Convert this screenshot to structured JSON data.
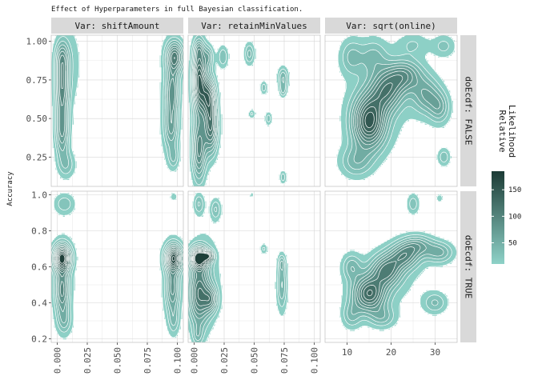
{
  "chart_data": {
    "type": "heatmap",
    "title": "Effect of Hyperparameters in full Bayesian classification.",
    "ylabel": "Accuracy",
    "xlabel": "",
    "colors": {
      "low": "#8ed2c8",
      "high": "#1c3b35",
      "contour_line": "#ffffff",
      "strip_bg": "#d9d9d9",
      "grid": "#d6d6d6"
    },
    "columns": [
      {
        "strip": "Var: shiftAmount",
        "xlim": [
          -0.005,
          0.105
        ],
        "ticks": [
          0.0,
          0.025,
          0.05,
          0.075,
          0.1
        ],
        "tick_labels": [
          "0.000",
          "0.025",
          "0.050",
          "0.075",
          "0.100"
        ],
        "tick_orientation": "rotated"
      },
      {
        "strip": "Var: retainMinValues",
        "xlim": [
          -0.005,
          0.105
        ],
        "ticks": [
          0.0,
          0.025,
          0.05,
          0.075,
          0.1
        ],
        "tick_labels": [
          "0.000",
          "0.025",
          "0.050",
          "0.075",
          "0.100"
        ],
        "tick_orientation": "rotated"
      },
      {
        "strip": "Var: sqrt(online)",
        "xlim": [
          5,
          35
        ],
        "ticks": [
          10,
          20,
          30
        ],
        "tick_labels": [
          "10",
          "20",
          "30"
        ],
        "tick_orientation": "horizontal"
      }
    ],
    "rows": [
      {
        "strip": "doEcdf: FALSE",
        "ylim": [
          0.06,
          1.04
        ],
        "ticks": [
          0.25,
          0.5,
          0.75,
          1.0
        ],
        "tick_labels": [
          "0.25",
          "0.50",
          "0.75",
          "1.00"
        ]
      },
      {
        "strip": "doEcdf: TRUE",
        "ylim": [
          0.18,
          1.02
        ],
        "ticks": [
          0.2,
          0.4,
          0.6,
          0.8,
          1.0
        ],
        "tick_labels": [
          "0.2",
          "0.4",
          "0.6",
          "0.8",
          "1.0"
        ]
      }
    ],
    "legend": {
      "title": "Relative\nLikelihood",
      "position": "right",
      "range": [
        10,
        185
      ],
      "ticks": [
        50,
        100,
        150
      ],
      "tick_labels": [
        "50",
        "100",
        "150"
      ]
    },
    "grid": true,
    "panels": [
      {
        "row": 0,
        "col": 0,
        "clusters": [
          {
            "x": 0.004,
            "y": 0.72,
            "sx": 0.004,
            "sy": 0.14,
            "peak": 95
          },
          {
            "x": 0.004,
            "y": 0.42,
            "sx": 0.004,
            "sy": 0.12,
            "peak": 80
          },
          {
            "x": 0.004,
            "y": 0.9,
            "sx": 0.004,
            "sy": 0.07,
            "peak": 45
          },
          {
            "x": 0.008,
            "y": 0.2,
            "sx": 0.005,
            "sy": 0.06,
            "peak": 35
          },
          {
            "x": 0.098,
            "y": 0.9,
            "sx": 0.005,
            "sy": 0.07,
            "peak": 110
          },
          {
            "x": 0.096,
            "y": 0.68,
            "sx": 0.004,
            "sy": 0.1,
            "peak": 75
          },
          {
            "x": 0.095,
            "y": 0.45,
            "sx": 0.004,
            "sy": 0.1,
            "peak": 60
          },
          {
            "x": 0.097,
            "y": 0.25,
            "sx": 0.003,
            "sy": 0.05,
            "peak": 35
          },
          {
            "x": 0.01,
            "y": 0.85,
            "sx": 0.008,
            "sy": 0.2,
            "peak": 20
          },
          {
            "x": 0.093,
            "y": 0.6,
            "sx": 0.006,
            "sy": 0.3,
            "peak": 18
          }
        ]
      },
      {
        "row": 0,
        "col": 1,
        "clusters": [
          {
            "x": 0.004,
            "y": 0.75,
            "sx": 0.004,
            "sy": 0.15,
            "peak": 150
          },
          {
            "x": 0.012,
            "y": 0.65,
            "sx": 0.004,
            "sy": 0.09,
            "peak": 110
          },
          {
            "x": 0.014,
            "y": 0.45,
            "sx": 0.004,
            "sy": 0.12,
            "peak": 120
          },
          {
            "x": 0.004,
            "y": 0.3,
            "sx": 0.004,
            "sy": 0.14,
            "peak": 100
          },
          {
            "x": 0.012,
            "y": 0.9,
            "sx": 0.003,
            "sy": 0.05,
            "peak": 55
          },
          {
            "x": 0.004,
            "y": 0.95,
            "sx": 0.003,
            "sy": 0.04,
            "peak": 35
          },
          {
            "x": 0.024,
            "y": 0.9,
            "sx": 0.003,
            "sy": 0.05,
            "peak": 40
          },
          {
            "x": 0.046,
            "y": 0.92,
            "sx": 0.003,
            "sy": 0.05,
            "peak": 45
          },
          {
            "x": 0.074,
            "y": 0.76,
            "sx": 0.003,
            "sy": 0.05,
            "peak": 55
          },
          {
            "x": 0.074,
            "y": 0.68,
            "sx": 0.002,
            "sy": 0.03,
            "peak": 35
          },
          {
            "x": 0.058,
            "y": 0.7,
            "sx": 0.002,
            "sy": 0.03,
            "peak": 35
          },
          {
            "x": 0.062,
            "y": 0.5,
            "sx": 0.002,
            "sy": 0.03,
            "peak": 35
          },
          {
            "x": 0.048,
            "y": 0.53,
            "sx": 0.002,
            "sy": 0.02,
            "peak": 30
          },
          {
            "x": 0.074,
            "y": 0.12,
            "sx": 0.002,
            "sy": 0.03,
            "peak": 35
          }
        ]
      },
      {
        "row": 0,
        "col": 2,
        "clusters": [
          {
            "x": 15,
            "y": 0.48,
            "sx": 2.6,
            "sy": 0.12,
            "peak": 150
          },
          {
            "x": 19,
            "y": 0.68,
            "sx": 2.6,
            "sy": 0.09,
            "peak": 95
          },
          {
            "x": 23,
            "y": 0.78,
            "sx": 2.8,
            "sy": 0.07,
            "peak": 80
          },
          {
            "x": 28,
            "y": 0.65,
            "sx": 2.2,
            "sy": 0.08,
            "peak": 60
          },
          {
            "x": 31,
            "y": 0.57,
            "sx": 1.6,
            "sy": 0.07,
            "peak": 50
          },
          {
            "x": 12,
            "y": 0.22,
            "sx": 2.5,
            "sy": 0.07,
            "peak": 45
          },
          {
            "x": 11,
            "y": 0.9,
            "sx": 1.8,
            "sy": 0.08,
            "peak": 40
          },
          {
            "x": 16,
            "y": 0.9,
            "sx": 2.2,
            "sy": 0.08,
            "peak": 40
          },
          {
            "x": 25,
            "y": 0.98,
            "sx": 2.5,
            "sy": 0.05,
            "peak": 25
          },
          {
            "x": 32,
            "y": 0.97,
            "sx": 1.8,
            "sy": 0.05,
            "peak": 30
          },
          {
            "x": 32,
            "y": 0.25,
            "sx": 1.0,
            "sy": 0.04,
            "peak": 35
          },
          {
            "x": 18,
            "y": 0.6,
            "sx": 8,
            "sy": 0.25,
            "peak": 12
          }
        ]
      },
      {
        "row": 1,
        "col": 0,
        "clusters": [
          {
            "x": 0.004,
            "y": 0.65,
            "sx": 0.005,
            "sy": 0.05,
            "peak": 175
          },
          {
            "x": 0.004,
            "y": 0.47,
            "sx": 0.004,
            "sy": 0.09,
            "peak": 85
          },
          {
            "x": 0.006,
            "y": 0.3,
            "sx": 0.004,
            "sy": 0.05,
            "peak": 35
          },
          {
            "x": 0.006,
            "y": 0.95,
            "sx": 0.006,
            "sy": 0.04,
            "peak": 35
          },
          {
            "x": 0.097,
            "y": 0.65,
            "sx": 0.005,
            "sy": 0.05,
            "peak": 160
          },
          {
            "x": 0.096,
            "y": 0.48,
            "sx": 0.004,
            "sy": 0.09,
            "peak": 70
          },
          {
            "x": 0.097,
            "y": 0.3,
            "sx": 0.003,
            "sy": 0.05,
            "peak": 30
          },
          {
            "x": 0.097,
            "y": 0.99,
            "sx": 0.002,
            "sy": 0.015,
            "peak": 25
          },
          {
            "x": 0.005,
            "y": 0.5,
            "sx": 0.007,
            "sy": 0.2,
            "peak": 18
          },
          {
            "x": 0.096,
            "y": 0.5,
            "sx": 0.006,
            "sy": 0.2,
            "peak": 18
          }
        ]
      },
      {
        "row": 1,
        "col": 1,
        "clusters": [
          {
            "x": 0.004,
            "y": 0.65,
            "sx": 0.005,
            "sy": 0.04,
            "peak": 185
          },
          {
            "x": 0.012,
            "y": 0.66,
            "sx": 0.003,
            "sy": 0.02,
            "peak": 120
          },
          {
            "x": 0.004,
            "y": 0.45,
            "sx": 0.006,
            "sy": 0.12,
            "peak": 110
          },
          {
            "x": 0.014,
            "y": 0.42,
            "sx": 0.004,
            "sy": 0.05,
            "peak": 75
          },
          {
            "x": 0.004,
            "y": 0.95,
            "sx": 0.003,
            "sy": 0.04,
            "peak": 40
          },
          {
            "x": 0.018,
            "y": 0.92,
            "sx": 0.003,
            "sy": 0.04,
            "peak": 40
          },
          {
            "x": 0.003,
            "y": 0.22,
            "sx": 0.003,
            "sy": 0.04,
            "peak": 35
          },
          {
            "x": 0.073,
            "y": 0.5,
            "sx": 0.003,
            "sy": 0.1,
            "peak": 55
          },
          {
            "x": 0.073,
            "y": 0.62,
            "sx": 0.002,
            "sy": 0.03,
            "peak": 35
          },
          {
            "x": 0.058,
            "y": 0.7,
            "sx": 0.002,
            "sy": 0.02,
            "peak": 30
          },
          {
            "x": 0.048,
            "y": 1.0,
            "sx": 0.001,
            "sy": 0.01,
            "peak": 25
          },
          {
            "x": 0.01,
            "y": 0.55,
            "sx": 0.01,
            "sy": 0.2,
            "peak": 20
          }
        ]
      },
      {
        "row": 1,
        "col": 2,
        "clusters": [
          {
            "x": 15,
            "y": 0.45,
            "sx": 2.6,
            "sy": 0.07,
            "peak": 130
          },
          {
            "x": 19,
            "y": 0.58,
            "sx": 2.4,
            "sy": 0.06,
            "peak": 100
          },
          {
            "x": 23,
            "y": 0.66,
            "sx": 2.4,
            "sy": 0.05,
            "peak": 85
          },
          {
            "x": 26,
            "y": 0.72,
            "sx": 2.5,
            "sy": 0.04,
            "peak": 60
          },
          {
            "x": 31,
            "y": 0.68,
            "sx": 2.2,
            "sy": 0.04,
            "peak": 55
          },
          {
            "x": 11,
            "y": 0.6,
            "sx": 1.5,
            "sy": 0.05,
            "peak": 45
          },
          {
            "x": 11,
            "y": 0.33,
            "sx": 1.5,
            "sy": 0.05,
            "peak": 40
          },
          {
            "x": 18,
            "y": 0.32,
            "sx": 2.0,
            "sy": 0.04,
            "peak": 40
          },
          {
            "x": 30,
            "y": 0.4,
            "sx": 1.8,
            "sy": 0.04,
            "peak": 40
          },
          {
            "x": 25,
            "y": 0.95,
            "sx": 1.0,
            "sy": 0.04,
            "peak": 35
          },
          {
            "x": 31,
            "y": 0.98,
            "sx": 0.5,
            "sy": 0.015,
            "peak": 25
          },
          {
            "x": 20,
            "y": 0.52,
            "sx": 7,
            "sy": 0.15,
            "peak": 12
          }
        ]
      }
    ]
  }
}
